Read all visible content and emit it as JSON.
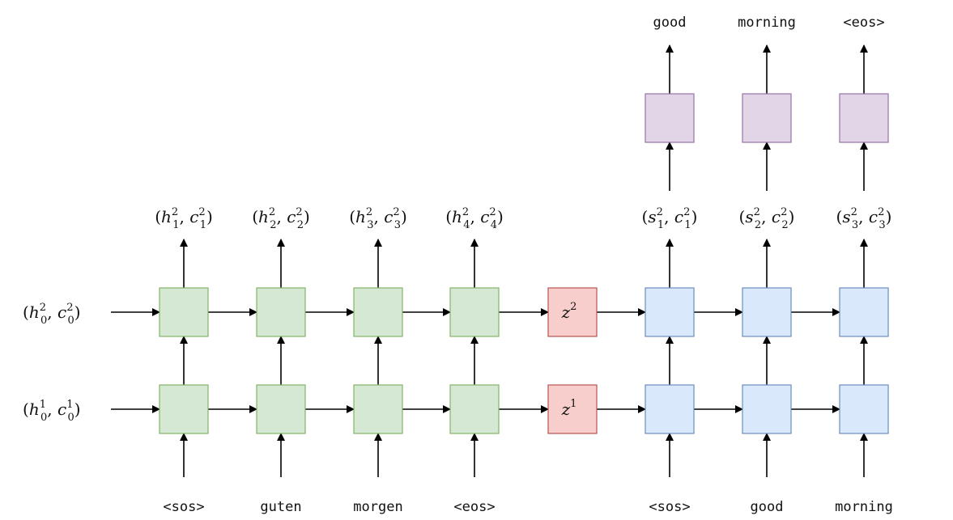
{
  "encoder_inputs": [
    "<sos>",
    "guten",
    "morgen",
    "<eos>"
  ],
  "decoder_inputs": [
    "<sos>",
    "good",
    "morning"
  ],
  "decoder_outputs": [
    "good",
    "morning",
    "<eos>"
  ],
  "encoder_hidden_labels": [
    {
      "var": "h",
      "t": "1"
    },
    {
      "var": "h",
      "t": "2"
    },
    {
      "var": "h",
      "t": "3"
    },
    {
      "var": "h",
      "t": "4"
    }
  ],
  "decoder_hidden_labels": [
    {
      "var": "s",
      "t": "1"
    },
    {
      "var": "s",
      "t": "2"
    },
    {
      "var": "s",
      "t": "3"
    }
  ],
  "initial_states": [
    {
      "layer": "2",
      "var": "h",
      "t": "0"
    },
    {
      "layer": "1",
      "var": "h",
      "t": "0"
    }
  ],
  "context_vectors": [
    {
      "var": "z",
      "layer": "2"
    },
    {
      "var": "z",
      "layer": "1"
    }
  ],
  "colors": {
    "encoder_fill": "#d5e8d4",
    "encoder_stroke": "#82b366",
    "context_fill": "#f8cecc",
    "context_stroke": "#b85450",
    "decoder_fill": "#dae8fc",
    "decoder_stroke": "#6c8ebf",
    "output_fill": "#e1d5e7",
    "output_stroke": "#9673a6"
  }
}
